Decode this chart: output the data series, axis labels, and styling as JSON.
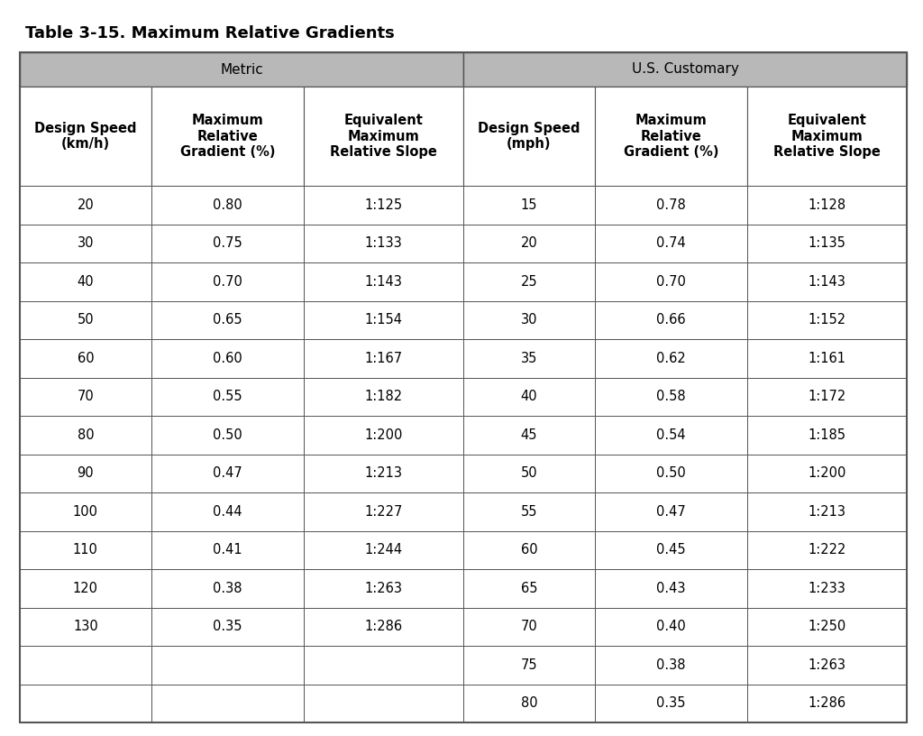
{
  "title": "Table 3-15. Maximum Relative Gradients",
  "metric_header": "Metric",
  "us_header": "U.S. Customary",
  "col_headers": [
    "Design Speed\n(km/h)",
    "Maximum\nRelative\nGradient (%)",
    "Equivalent\nMaximum\nRelative Slope",
    "Design Speed\n(mph)",
    "Maximum\nRelative\nGradient (%)",
    "Equivalent\nMaximum\nRelative Slope"
  ],
  "metric_data": [
    [
      "20",
      "0.80",
      "1:125"
    ],
    [
      "30",
      "0.75",
      "1:133"
    ],
    [
      "40",
      "0.70",
      "1:143"
    ],
    [
      "50",
      "0.65",
      "1:154"
    ],
    [
      "60",
      "0.60",
      "1:167"
    ],
    [
      "70",
      "0.55",
      "1:182"
    ],
    [
      "80",
      "0.50",
      "1:200"
    ],
    [
      "90",
      "0.47",
      "1:213"
    ],
    [
      "100",
      "0.44",
      "1:227"
    ],
    [
      "110",
      "0.41",
      "1:244"
    ],
    [
      "120",
      "0.38",
      "1:263"
    ],
    [
      "130",
      "0.35",
      "1:286"
    ],
    [
      "",
      "",
      ""
    ],
    [
      "",
      "",
      ""
    ]
  ],
  "us_data": [
    [
      "15",
      "0.78",
      "1:128"
    ],
    [
      "20",
      "0.74",
      "1:135"
    ],
    [
      "25",
      "0.70",
      "1:143"
    ],
    [
      "30",
      "0.66",
      "1:152"
    ],
    [
      "35",
      "0.62",
      "1:161"
    ],
    [
      "40",
      "0.58",
      "1:172"
    ],
    [
      "45",
      "0.54",
      "1:185"
    ],
    [
      "50",
      "0.50",
      "1:200"
    ],
    [
      "55",
      "0.47",
      "1:213"
    ],
    [
      "60",
      "0.45",
      "1:222"
    ],
    [
      "65",
      "0.43",
      "1:233"
    ],
    [
      "70",
      "0.40",
      "1:250"
    ],
    [
      "75",
      "0.38",
      "1:263"
    ],
    [
      "80",
      "0.35",
      "1:286"
    ]
  ],
  "header_gray": "#b8b8b8",
  "white": "#ffffff",
  "border_color": "#555555",
  "text_color": "#000000",
  "title_fontsize": 13,
  "header1_fontsize": 11,
  "header2_fontsize": 10.5,
  "data_fontsize": 10.5,
  "fig_width": 10.24,
  "fig_height": 8.16,
  "dpi": 100
}
